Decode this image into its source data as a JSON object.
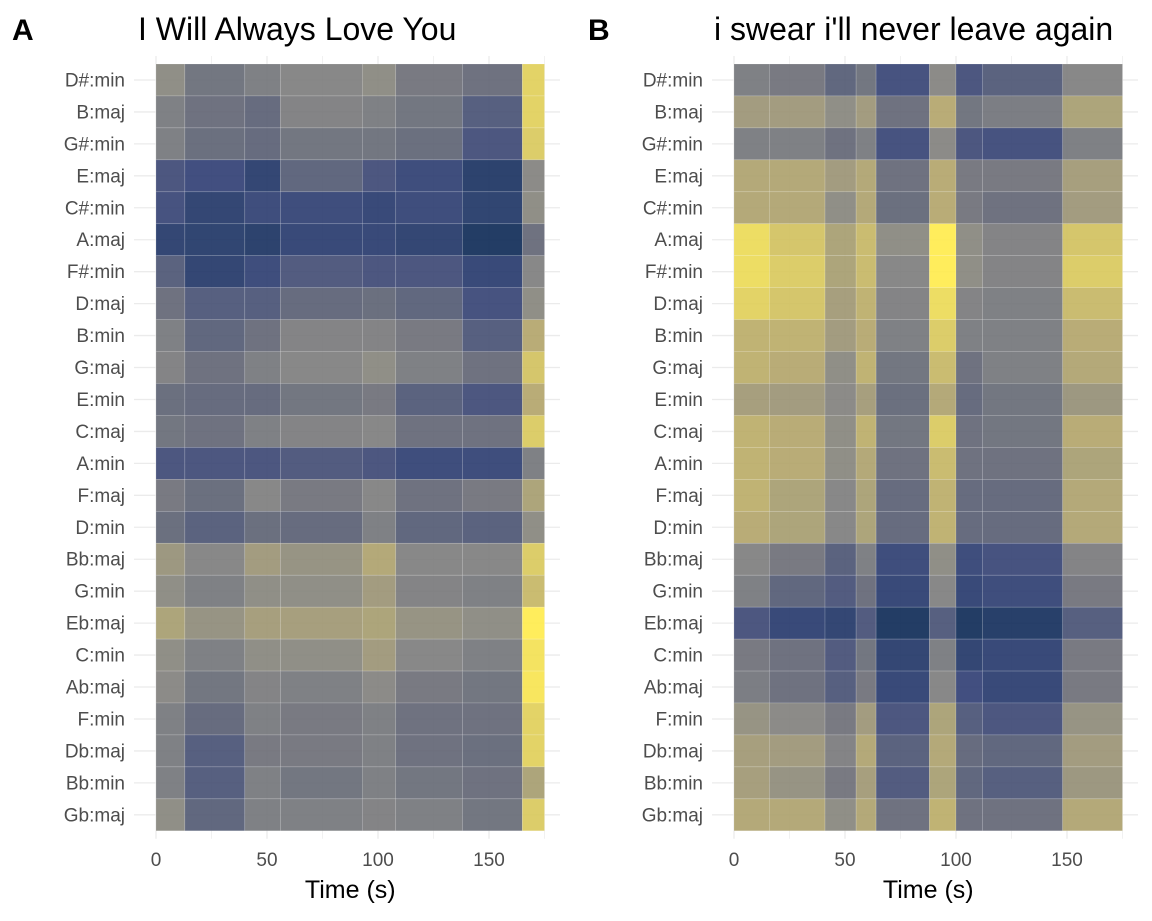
{
  "chart_data": [
    {
      "type": "heatmap",
      "panel": "A",
      "title": "I Will Always Love You",
      "xlabel": "Time (s)",
      "ylabel": "",
      "xlim": [
        0,
        175
      ],
      "x_ticks": [
        0,
        50,
        100,
        150
      ],
      "grid": true,
      "legend": "none",
      "colorscale": "cividis (0 = dark blue, 1 = yellow)",
      "rows": [
        "D#:min",
        "B:maj",
        "G#:min",
        "E:maj",
        "C#:min",
        "A:maj",
        "F#:min",
        "D:maj",
        "B:min",
        "G:maj",
        "E:min",
        "C:maj",
        "A:min",
        "F:maj",
        "D:min",
        "Bb:maj",
        "G:min",
        "Eb:maj",
        "C:min",
        "Ab:maj",
        "F:min",
        "Db:maj",
        "Bb:min",
        "Gb:maj"
      ],
      "time_edges": [
        0,
        13,
        40,
        56,
        93,
        108,
        138,
        165,
        175
      ],
      "values": [
        [
          0.62,
          0.45,
          0.52,
          0.58,
          0.62,
          0.48,
          0.42,
          0.92
        ],
        [
          0.52,
          0.42,
          0.38,
          0.55,
          0.52,
          0.45,
          0.3,
          0.92
        ],
        [
          0.52,
          0.4,
          0.38,
          0.45,
          0.45,
          0.4,
          0.25,
          0.9
        ],
        [
          0.25,
          0.2,
          0.12,
          0.35,
          0.25,
          0.18,
          0.08,
          0.6
        ],
        [
          0.22,
          0.12,
          0.18,
          0.18,
          0.15,
          0.18,
          0.1,
          0.62
        ],
        [
          0.12,
          0.1,
          0.08,
          0.15,
          0.15,
          0.12,
          0.02,
          0.42
        ],
        [
          0.32,
          0.12,
          0.18,
          0.28,
          0.25,
          0.25,
          0.15,
          0.58
        ],
        [
          0.42,
          0.3,
          0.3,
          0.38,
          0.4,
          0.35,
          0.22,
          0.62
        ],
        [
          0.52,
          0.35,
          0.42,
          0.55,
          0.55,
          0.48,
          0.3,
          0.8
        ],
        [
          0.55,
          0.42,
          0.52,
          0.58,
          0.62,
          0.52,
          0.42,
          0.88
        ],
        [
          0.4,
          0.38,
          0.38,
          0.45,
          0.48,
          0.32,
          0.25,
          0.8
        ],
        [
          0.45,
          0.42,
          0.52,
          0.55,
          0.58,
          0.42,
          0.42,
          0.9
        ],
        [
          0.25,
          0.25,
          0.25,
          0.28,
          0.25,
          0.18,
          0.18,
          0.52
        ],
        [
          0.48,
          0.4,
          0.58,
          0.48,
          0.58,
          0.42,
          0.48,
          0.75
        ],
        [
          0.4,
          0.32,
          0.4,
          0.38,
          0.52,
          0.35,
          0.32,
          0.62
        ],
        [
          0.68,
          0.58,
          0.7,
          0.65,
          0.78,
          0.58,
          0.58,
          0.9
        ],
        [
          0.62,
          0.52,
          0.62,
          0.62,
          0.7,
          0.55,
          0.52,
          0.85
        ],
        [
          0.75,
          0.65,
          0.72,
          0.72,
          0.75,
          0.65,
          0.62,
          1.0
        ],
        [
          0.62,
          0.52,
          0.62,
          0.62,
          0.7,
          0.58,
          0.52,
          0.97
        ],
        [
          0.6,
          0.45,
          0.55,
          0.52,
          0.6,
          0.48,
          0.45,
          0.98
        ],
        [
          0.52,
          0.38,
          0.52,
          0.48,
          0.52,
          0.42,
          0.42,
          0.92
        ],
        [
          0.52,
          0.3,
          0.48,
          0.48,
          0.52,
          0.42,
          0.4,
          0.92
        ],
        [
          0.52,
          0.3,
          0.52,
          0.45,
          0.52,
          0.45,
          0.42,
          0.75
        ],
        [
          0.62,
          0.35,
          0.52,
          0.52,
          0.55,
          0.52,
          0.45,
          0.9
        ]
      ]
    },
    {
      "type": "heatmap",
      "panel": "B",
      "title": "i swear i'll never leave again",
      "xlabel": "Time (s)",
      "ylabel": "",
      "xlim": [
        0,
        175
      ],
      "x_ticks": [
        0,
        50,
        100,
        150
      ],
      "grid": true,
      "legend": "none",
      "colorscale": "cividis (0 = dark blue, 1 = yellow)",
      "rows": [
        "D#:min",
        "B:maj",
        "G#:min",
        "E:maj",
        "C#:min",
        "A:maj",
        "F#:min",
        "D:maj",
        "B:min",
        "G:maj",
        "E:min",
        "C:maj",
        "A:min",
        "F:maj",
        "D:min",
        "Bb:maj",
        "G:min",
        "Eb:maj",
        "C:min",
        "Ab:maj",
        "F:min",
        "Db:maj",
        "Bb:min",
        "Gb:maj"
      ],
      "time_edges": [
        0,
        16,
        41,
        55,
        64,
        88,
        100,
        112,
        148,
        175
      ],
      "values": [
        [
          0.52,
          0.48,
          0.35,
          0.45,
          0.22,
          0.6,
          0.25,
          0.32,
          0.58
        ],
        [
          0.7,
          0.7,
          0.62,
          0.7,
          0.42,
          0.8,
          0.45,
          0.5,
          0.75
        ],
        [
          0.52,
          0.52,
          0.42,
          0.52,
          0.22,
          0.6,
          0.25,
          0.22,
          0.52
        ],
        [
          0.78,
          0.78,
          0.7,
          0.78,
          0.42,
          0.8,
          0.48,
          0.48,
          0.72
        ],
        [
          0.78,
          0.78,
          0.62,
          0.78,
          0.4,
          0.8,
          0.48,
          0.42,
          0.7
        ],
        [
          0.95,
          0.88,
          0.75,
          0.85,
          0.62,
          1.0,
          0.62,
          0.55,
          0.88
        ],
        [
          0.95,
          0.9,
          0.75,
          0.85,
          0.58,
          1.0,
          0.62,
          0.55,
          0.9
        ],
        [
          0.92,
          0.88,
          0.72,
          0.82,
          0.55,
          0.95,
          0.55,
          0.52,
          0.85
        ],
        [
          0.82,
          0.82,
          0.7,
          0.8,
          0.52,
          0.9,
          0.52,
          0.52,
          0.8
        ],
        [
          0.82,
          0.8,
          0.62,
          0.82,
          0.45,
          0.85,
          0.42,
          0.52,
          0.78
        ],
        [
          0.72,
          0.7,
          0.6,
          0.72,
          0.4,
          0.78,
          0.38,
          0.45,
          0.68
        ],
        [
          0.82,
          0.8,
          0.62,
          0.82,
          0.45,
          0.9,
          0.42,
          0.45,
          0.8
        ],
        [
          0.82,
          0.8,
          0.62,
          0.78,
          0.42,
          0.85,
          0.42,
          0.42,
          0.75
        ],
        [
          0.82,
          0.75,
          0.58,
          0.75,
          0.38,
          0.82,
          0.38,
          0.38,
          0.78
        ],
        [
          0.8,
          0.75,
          0.58,
          0.75,
          0.38,
          0.82,
          0.38,
          0.38,
          0.78
        ],
        [
          0.58,
          0.48,
          0.32,
          0.52,
          0.18,
          0.62,
          0.18,
          0.22,
          0.55
        ],
        [
          0.52,
          0.35,
          0.28,
          0.42,
          0.15,
          0.58,
          0.15,
          0.18,
          0.48
        ],
        [
          0.25,
          0.15,
          0.12,
          0.28,
          0.02,
          0.3,
          0.02,
          0.05,
          0.3
        ],
        [
          0.48,
          0.42,
          0.28,
          0.45,
          0.12,
          0.52,
          0.12,
          0.15,
          0.48
        ],
        [
          0.5,
          0.42,
          0.3,
          0.48,
          0.15,
          0.58,
          0.2,
          0.15,
          0.48
        ],
        [
          0.65,
          0.6,
          0.48,
          0.7,
          0.25,
          0.75,
          0.3,
          0.25,
          0.65
        ],
        [
          0.72,
          0.7,
          0.55,
          0.78,
          0.32,
          0.78,
          0.38,
          0.35,
          0.7
        ],
        [
          0.72,
          0.65,
          0.48,
          0.72,
          0.28,
          0.75,
          0.35,
          0.3,
          0.68
        ],
        [
          0.78,
          0.78,
          0.62,
          0.78,
          0.42,
          0.82,
          0.42,
          0.42,
          0.78
        ]
      ]
    }
  ]
}
